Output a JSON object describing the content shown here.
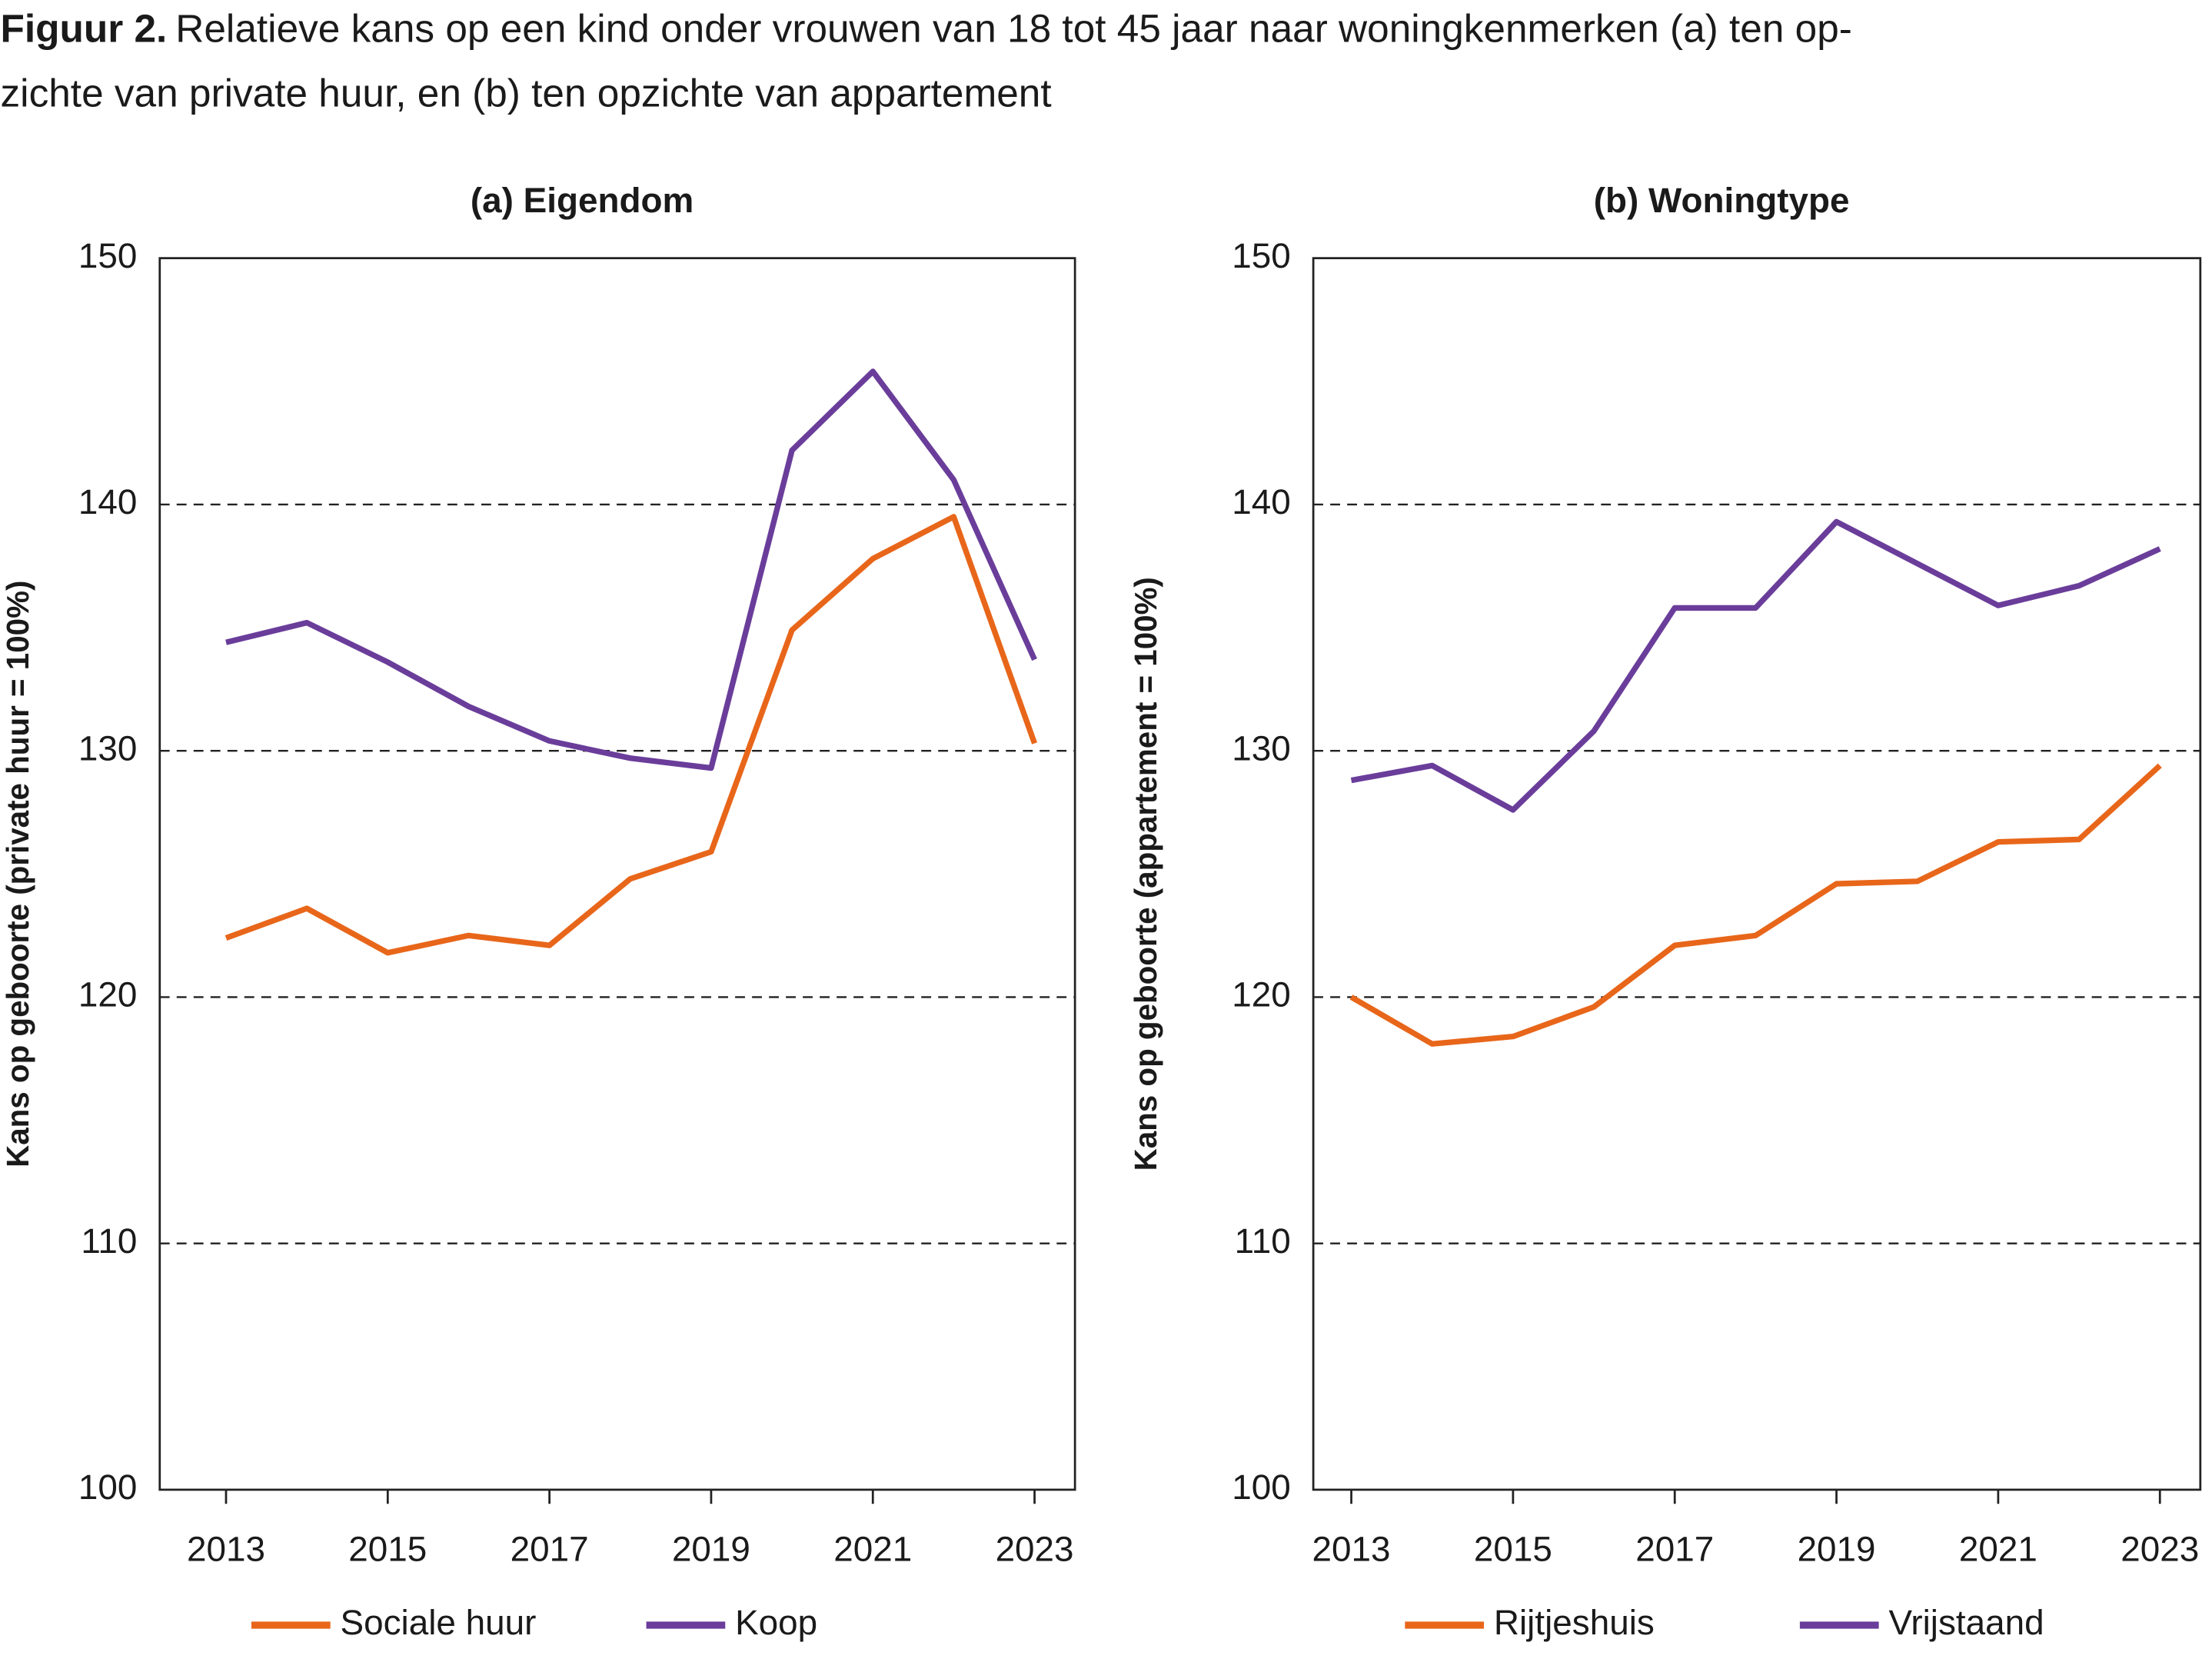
{
  "figure_label": "Figuur 2.",
  "title_lines": [
    "Relatieve kans op een kind onder vrouwen van 18 tot 45 jaar naar woningkenmerken (a) ten op-",
    "zichte van private huur, en (b) ten opzichte van appartement"
  ],
  "chart_data": [
    {
      "type": "line",
      "title": "(a) Eigendom",
      "y_label": "Kans op geboorte (private huur = 100%)",
      "x": [
        2013,
        2014,
        2015,
        2016,
        2017,
        2018,
        2019,
        2020,
        2021,
        2022,
        2023
      ],
      "series": [
        {
          "name": "Sociale huur",
          "color": "#e8661a",
          "values": [
            122.4,
            123.6,
            121.8,
            122.5,
            122.1,
            124.8,
            125.9,
            134.9,
            137.8,
            139.5,
            130.3
          ]
        },
        {
          "name": "Koop",
          "color": "#6a3d9a",
          "values": [
            134.4,
            135.2,
            133.6,
            131.8,
            130.4,
            129.7,
            129.3,
            142.2,
            145.4,
            141.0,
            133.7
          ]
        }
      ],
      "xlim": [
        2012.18,
        2023.5
      ],
      "xticks": [
        2013,
        2015,
        2017,
        2019,
        2021,
        2023
      ],
      "ylim": [
        100,
        150
      ],
      "yticks": [
        100,
        110,
        120,
        130,
        140,
        150
      ],
      "grid": true
    },
    {
      "type": "line",
      "title": "(b) Woningtype",
      "y_label": "Kans op geboorte (appartement = 100%)",
      "x": [
        2013,
        2014,
        2015,
        2016,
        2017,
        2018,
        2019,
        2020,
        2021,
        2022,
        2023
      ],
      "series": [
        {
          "name": "Rijtjeshuis",
          "color": "#e8661a",
          "values": [
            120.0,
            118.1,
            118.4,
            119.6,
            122.1,
            122.5,
            124.6,
            124.7,
            126.3,
            126.4,
            129.4
          ]
        },
        {
          "name": "Vrijstaand",
          "color": "#6a3d9a",
          "values": [
            128.8,
            129.4,
            127.6,
            130.8,
            135.8,
            135.8,
            139.3,
            137.6,
            135.9,
            136.7,
            138.2
          ]
        }
      ],
      "xlim": [
        2012.53,
        2023.5
      ],
      "xticks": [
        2013,
        2015,
        2017,
        2019,
        2021,
        2023
      ],
      "ylim": [
        100,
        150
      ],
      "yticks": [
        100,
        110,
        120,
        130,
        140,
        150
      ],
      "grid": true
    }
  ]
}
